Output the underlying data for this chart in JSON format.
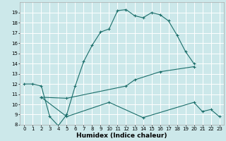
{
  "xlabel": "Humidex (Indice chaleur)",
  "bg_color": "#cce8ea",
  "grid_color": "#ffffff",
  "line_color": "#1a6e6a",
  "xlim": [
    -0.5,
    23.5
  ],
  "ylim": [
    8,
    20
  ],
  "xticks": [
    0,
    1,
    2,
    3,
    4,
    5,
    6,
    7,
    8,
    9,
    10,
    11,
    12,
    13,
    14,
    15,
    16,
    17,
    18,
    19,
    20,
    21,
    22,
    23
  ],
  "yticks": [
    8,
    9,
    10,
    11,
    12,
    13,
    14,
    15,
    16,
    17,
    18,
    19
  ],
  "line1_x": [
    0,
    1,
    2,
    3,
    4,
    5,
    6,
    7,
    8,
    9,
    10,
    11,
    12,
    13,
    14,
    15,
    16,
    17,
    18,
    19,
    20
  ],
  "line1_y": [
    12.0,
    12.0,
    11.8,
    8.8,
    7.9,
    9.0,
    11.8,
    14.2,
    15.8,
    17.1,
    17.4,
    19.2,
    19.3,
    18.7,
    18.5,
    19.0,
    18.8,
    18.2,
    16.8,
    15.2,
    14.0
  ],
  "line2_x": [
    2,
    5,
    12,
    13,
    16,
    20
  ],
  "line2_y": [
    10.7,
    10.6,
    11.8,
    12.4,
    13.2,
    13.7
  ],
  "line3_x": [
    2,
    5,
    10,
    14,
    20,
    21,
    22,
    23
  ],
  "line3_y": [
    10.7,
    8.8,
    10.2,
    8.7,
    10.2,
    9.3,
    9.5,
    8.8
  ],
  "tick_fontsize": 5.0,
  "xlabel_fontsize": 6.5
}
